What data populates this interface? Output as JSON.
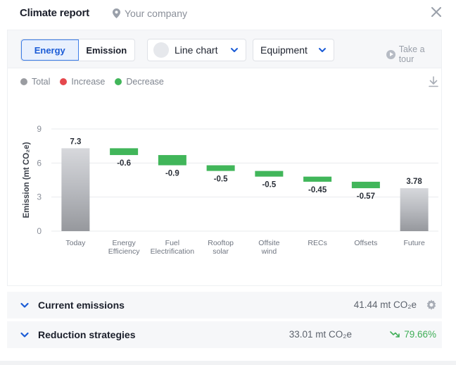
{
  "header": {
    "title": "Climate report",
    "company": "Your company"
  },
  "toolbar": {
    "tabs": [
      "Energy",
      "Emission"
    ],
    "active_tab": "Energy",
    "chart_type": "Line chart",
    "filter": "Equipment",
    "tour": "Take a tour"
  },
  "legend": {
    "items": [
      {
        "label": "Total",
        "color": "#9a9ca1"
      },
      {
        "label": "Increase",
        "color": "#e5484d"
      },
      {
        "label": "Decrease",
        "color": "#41b65a"
      }
    ]
  },
  "chart_data": {
    "type": "bar",
    "subtype": "waterfall",
    "ylabel": "Emission (mt CO₂e)",
    "ylim": [
      0,
      9
    ],
    "yticks": [
      0,
      3,
      6,
      9
    ],
    "grid": true,
    "categories": [
      [
        "Today"
      ],
      [
        "Energy",
        "Efficiency"
      ],
      [
        "Fuel",
        "Electrification"
      ],
      [
        "Rooftop",
        "solar"
      ],
      [
        "Offsite",
        "wind"
      ],
      [
        "RECs"
      ],
      [
        "Offsets"
      ],
      [
        "Future"
      ]
    ],
    "values": [
      7.3,
      -0.6,
      -0.9,
      -0.5,
      -0.5,
      -0.45,
      -0.57,
      3.78
    ],
    "labels": [
      "7.3",
      "-0.6",
      "-0.9",
      "-0.5",
      "-0.5",
      "-0.45",
      "-0.57",
      "3.78"
    ],
    "kinds": [
      "total",
      "decrease",
      "decrease",
      "decrease",
      "decrease",
      "decrease",
      "decrease",
      "total"
    ],
    "colors": {
      "total": "#9a9ca1",
      "decrease": "#41b65a",
      "increase": "#e5484d"
    }
  },
  "sections": {
    "current": {
      "label": "Current emissions",
      "value": "41.44 mt CO₂e"
    },
    "reduction": {
      "label": "Reduction strategies",
      "value": "33.01 mt CO₂e",
      "percent": "79.66%"
    }
  }
}
